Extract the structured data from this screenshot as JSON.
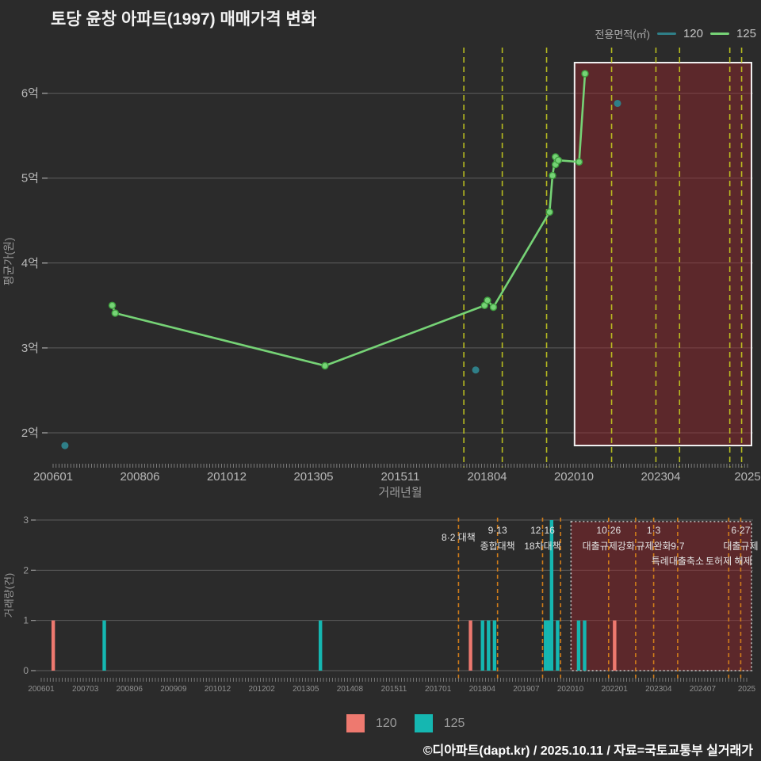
{
  "title": "토당 윤창 아파트(1997) 매매가격 변화",
  "legend_top": {
    "label": "전용면적(㎡)",
    "series": [
      {
        "name": "120",
        "color": "#4a9099"
      },
      {
        "name": "125",
        "color": "#76d376"
      }
    ]
  },
  "legend_bottom": [
    {
      "name": "120",
      "color": "#ee796f"
    },
    {
      "name": "125",
      "color": "#15b7b1"
    }
  ],
  "footer": "©디아파트(dapt.kr) / 2025.10.11 / 자료=국토교통부 실거래가",
  "colors": {
    "background": "#2b2b2b",
    "top_dashed_line": "#c6cb1f",
    "bottom_dashed_line": "#d07c1a",
    "highlight_box_fill": "rgba(152,38,44,0.45)",
    "series_120": "#2f7f88",
    "series_125": "#76d376",
    "bar_120": "#ee796f",
    "bar_125": "#15b7b1"
  },
  "chart_data": [
    {
      "type": "line",
      "name": "price-history",
      "xlabel": "거래년월",
      "ylabel": "평균가(원)",
      "x_ticks": [
        "200601",
        "200806",
        "201012",
        "201305",
        "201511",
        "201804",
        "202010",
        "202304",
        "2025"
      ],
      "y_ticks": [
        {
          "label": "2억",
          "v": 2
        },
        {
          "label": "3억",
          "v": 3
        },
        {
          "label": "4억",
          "v": 4
        },
        {
          "label": "5억",
          "v": 5
        },
        {
          "label": "6억",
          "v": 6
        }
      ],
      "ylim": [
        1.65,
        6.45
      ],
      "x_range": [
        "200601",
        "202508"
      ],
      "highlight_from": "202010",
      "annotation_lines": [
        "201708",
        "201809",
        "201912",
        "202110",
        "202301",
        "202309",
        "202502",
        "202506"
      ],
      "series": [
        {
          "name": "120",
          "style": "scatter",
          "points": [
            {
              "ym": "200605",
              "v": 1.85
            },
            {
              "ym": "201712",
              "v": 2.74
            },
            {
              "ym": "202112",
              "v": 5.88
            }
          ]
        },
        {
          "name": "125",
          "style": "line",
          "points": [
            {
              "ym": "200709",
              "v": 3.5
            },
            {
              "ym": "200710",
              "v": 3.41
            },
            {
              "ym": "201309",
              "v": 2.79
            },
            {
              "ym": "201803",
              "v": 3.5
            },
            {
              "ym": "201804",
              "v": 3.56
            },
            {
              "ym": "201806",
              "v": 3.48
            },
            {
              "ym": "202001",
              "v": 4.6
            },
            {
              "ym": "202002",
              "v": 5.03
            },
            {
              "ym": "202003",
              "v": 5.25
            },
            {
              "ym": "202003",
              "v": 5.16
            },
            {
              "ym": "202004",
              "v": 5.21
            },
            {
              "ym": "202011",
              "v": 5.19
            },
            {
              "ym": "202101",
              "v": 6.23
            }
          ]
        }
      ]
    },
    {
      "type": "bar",
      "name": "volume",
      "ylabel": "거래량(건)",
      "y_ticks": [
        {
          "label": "0",
          "v": 0
        },
        {
          "label": "1",
          "v": 1
        },
        {
          "label": "2",
          "v": 2
        },
        {
          "label": "3",
          "v": 3
        }
      ],
      "ylim": [
        0,
        3
      ],
      "x_ticks": [
        "200601",
        "200703",
        "200806",
        "200909",
        "201012",
        "201202",
        "201305",
        "201408",
        "201511",
        "201701",
        "201804",
        "201907",
        "202010",
        "202201",
        "202304",
        "202407",
        "2025"
      ],
      "x_range": [
        "200601",
        "202508"
      ],
      "highlight_from": "202010",
      "bars": [
        {
          "ym": "200605",
          "series": "120",
          "count": 1
        },
        {
          "ym": "200710",
          "series": "125",
          "count": 1
        },
        {
          "ym": "201310",
          "series": "125",
          "count": 1
        },
        {
          "ym": "201712",
          "series": "120",
          "count": 1
        },
        {
          "ym": "201804",
          "series": "125",
          "count": 1
        },
        {
          "ym": "201806",
          "series": "125",
          "count": 1
        },
        {
          "ym": "201808",
          "series": "125",
          "count": 1
        },
        {
          "ym": "202001",
          "series": "125",
          "count": 1
        },
        {
          "ym": "202002",
          "series": "125",
          "count": 1
        },
        {
          "ym": "202003",
          "series": "125",
          "count": 3
        },
        {
          "ym": "202005",
          "series": "125",
          "count": 1
        },
        {
          "ym": "202012",
          "series": "125",
          "count": 1
        },
        {
          "ym": "202102",
          "series": "125",
          "count": 1
        },
        {
          "ym": "202112",
          "series": "120",
          "count": 1
        }
      ],
      "annotations": [
        {
          "ym": "201708",
          "texts": [
            {
              "t": "8·2 대책",
              "row": 1.5
            }
          ]
        },
        {
          "ym": "201809",
          "texts": [
            {
              "t": "9·13",
              "row": 1
            },
            {
              "t": "종합대책",
              "row": 2
            }
          ]
        },
        {
          "ym": "201912",
          "texts": [
            {
              "t": "12·16",
              "row": 1
            },
            {
              "t": "18차대책",
              "row": 2
            }
          ]
        },
        {
          "ym": "202006",
          "texts": []
        },
        {
          "ym": "202110",
          "texts": [
            {
              "t": "10·26",
              "row": 1
            },
            {
              "t": "대출규제강화",
              "row": 2
            }
          ]
        },
        {
          "ym": "202207",
          "texts": []
        },
        {
          "ym": "202301",
          "texts": [
            {
              "t": "1·3",
              "row": 1
            },
            {
              "t": "규제완화",
              "row": 2
            }
          ]
        },
        {
          "ym": "202309",
          "texts": [
            {
              "t": "9·7",
              "row": 2
            },
            {
              "t": "특례대출축소",
              "row": 3
            }
          ]
        },
        {
          "ym": "202502",
          "texts": [
            {
              "t": "토허제 해제",
              "row": 3
            }
          ]
        },
        {
          "ym": "202506",
          "texts": [
            {
              "t": "6·27",
              "row": 1
            },
            {
              "t": "대출규제",
              "row": 2
            }
          ]
        }
      ]
    }
  ]
}
